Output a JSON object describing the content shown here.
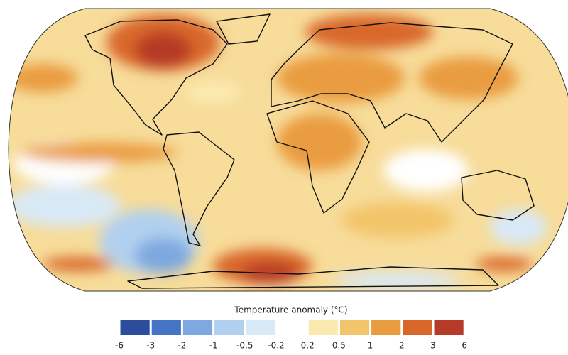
{
  "legend": {
    "title": "Temperature anomaly (°C)",
    "ticks": [
      -6,
      -3,
      -2,
      -1,
      -0.5,
      -0.2,
      0.2,
      0.5,
      1,
      2,
      3,
      6
    ],
    "colors": [
      "#2c4c9c",
      "#4574c4",
      "#7ea8df",
      "#b1d0ef",
      "#d8e9f7",
      "#ffffff",
      "#fbeab0",
      "#f3c56b",
      "#ea9c40",
      "#d9672c",
      "#b63a28"
    ]
  }
}
